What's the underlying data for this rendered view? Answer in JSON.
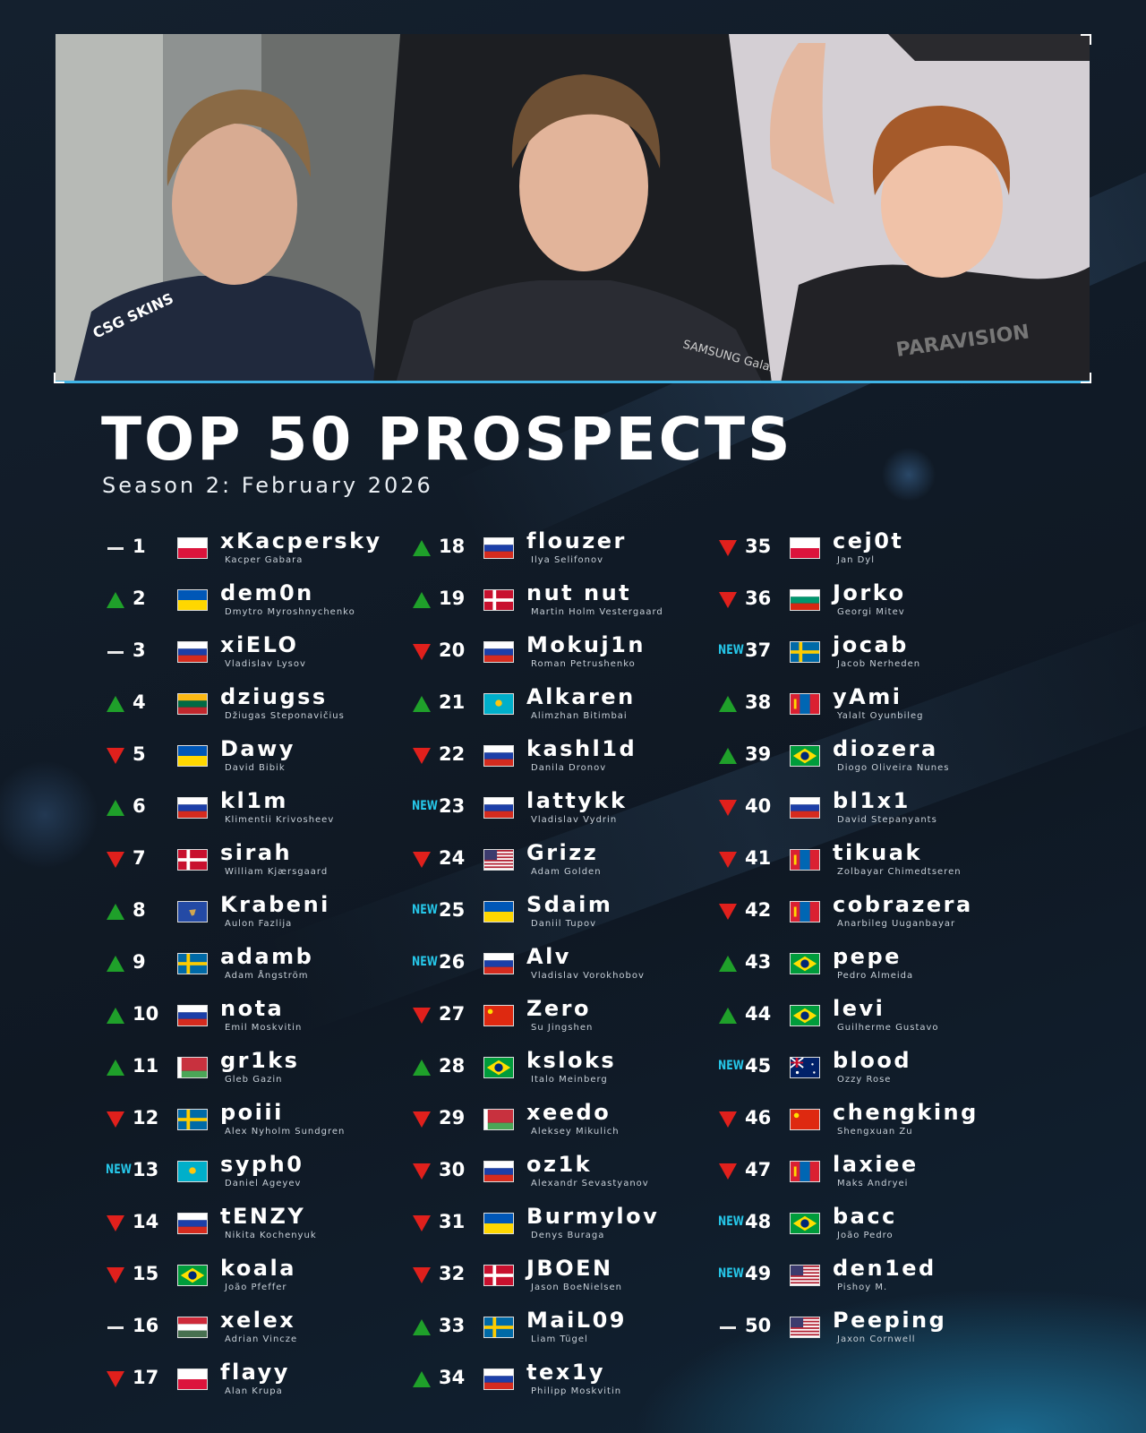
{
  "title": "TOP 50 PROSPECTS",
  "subtitle": "Season 2: February 2026",
  "colors": {
    "up": "#1fa02a",
    "down": "#e0201c",
    "new": "#26c6e8",
    "accent": "#3fb4e6"
  },
  "new_label": "NEW",
  "photos": [
    {
      "jersey_text": "CSG SKINS"
    },
    {
      "jersey_text": "SAMSUNG Galaxy"
    },
    {
      "jersey_text": "PARAVISION"
    }
  ],
  "players": [
    {
      "rank": "1",
      "trend": "same",
      "flag": "pl",
      "nick": "xKacpersky",
      "name": "Kacper Gabara"
    },
    {
      "rank": "2",
      "trend": "up",
      "flag": "ua",
      "nick": "dem0n",
      "name": "Dmytro Myroshnychenko"
    },
    {
      "rank": "3",
      "trend": "same",
      "flag": "ru",
      "nick": "xiELO",
      "name": "Vladislav Lysov"
    },
    {
      "rank": "4",
      "trend": "up",
      "flag": "lt",
      "nick": "dziugss",
      "name": "Džiugas Steponavičius"
    },
    {
      "rank": "5",
      "trend": "down",
      "flag": "ua",
      "nick": "Dawy",
      "name": "David Bibik"
    },
    {
      "rank": "6",
      "trend": "up",
      "flag": "ru",
      "nick": "kl1m",
      "name": "Klimentii Krivosheev"
    },
    {
      "rank": "7",
      "trend": "down",
      "flag": "dk",
      "nick": "sirah",
      "name": "William Kjærsgaard"
    },
    {
      "rank": "8",
      "trend": "up",
      "flag": "xk",
      "nick": "Krabeni",
      "name": "Aulon Fazlija"
    },
    {
      "rank": "9",
      "trend": "up",
      "flag": "se",
      "nick": "adamb",
      "name": "Adam Ångström"
    },
    {
      "rank": "10",
      "trend": "up",
      "flag": "ru",
      "nick": "nota",
      "name": "Emil Moskvitin"
    },
    {
      "rank": "11",
      "trend": "up",
      "flag": "by",
      "nick": "gr1ks",
      "name": "Gleb Gazin"
    },
    {
      "rank": "12",
      "trend": "down",
      "flag": "se",
      "nick": "poiii",
      "name": "Alex Nyholm Sundgren"
    },
    {
      "rank": "13",
      "trend": "new",
      "flag": "kz",
      "nick": "syph0",
      "name": "Daniel Ageyev"
    },
    {
      "rank": "14",
      "trend": "down",
      "flag": "ru",
      "nick": "tENZY",
      "name": "Nikita Kochenyuk"
    },
    {
      "rank": "15",
      "trend": "down",
      "flag": "br",
      "nick": "koala",
      "name": "João Pfeffer"
    },
    {
      "rank": "16",
      "trend": "same",
      "flag": "hu",
      "nick": "xelex",
      "name": "Adrian Vincze"
    },
    {
      "rank": "17",
      "trend": "down",
      "flag": "pl",
      "nick": "flayy",
      "name": "Alan Krupa"
    },
    {
      "rank": "18",
      "trend": "up",
      "flag": "ru",
      "nick": "flouzer",
      "name": "Ilya Selifonov"
    },
    {
      "rank": "19",
      "trend": "up",
      "flag": "dk",
      "nick": "nut nut",
      "name": "Martin Holm Vestergaard"
    },
    {
      "rank": "20",
      "trend": "down",
      "flag": "ru",
      "nick": "Mokuj1n",
      "name": "Roman Petrushenko"
    },
    {
      "rank": "21",
      "trend": "up",
      "flag": "kz",
      "nick": "Alkaren",
      "name": "Alimzhan Bitimbai"
    },
    {
      "rank": "22",
      "trend": "down",
      "flag": "ru",
      "nick": "kashl1d",
      "name": "Danila Dronov"
    },
    {
      "rank": "23",
      "trend": "new",
      "flag": "ru",
      "nick": "lattykk",
      "name": "Vladislav Vydrin"
    },
    {
      "rank": "24",
      "trend": "down",
      "flag": "us",
      "nick": "Grizz",
      "name": "Adam Golden"
    },
    {
      "rank": "25",
      "trend": "new",
      "flag": "ua",
      "nick": "Sdaim",
      "name": "Daniil Tupov"
    },
    {
      "rank": "26",
      "trend": "new",
      "flag": "ru",
      "nick": "Alv",
      "name": "Vladislav Vorokhobov"
    },
    {
      "rank": "27",
      "trend": "down",
      "flag": "cn",
      "nick": "Zero",
      "name": "Su Jingshen"
    },
    {
      "rank": "28",
      "trend": "up",
      "flag": "br",
      "nick": "ksloks",
      "name": "Italo Meinberg"
    },
    {
      "rank": "29",
      "trend": "down",
      "flag": "by",
      "nick": "xeedo",
      "name": "Aleksey Mikulich"
    },
    {
      "rank": "30",
      "trend": "down",
      "flag": "ru",
      "nick": "oz1k",
      "name": "Alexandr Sevastyanov"
    },
    {
      "rank": "31",
      "trend": "down",
      "flag": "ua",
      "nick": "Burmylov",
      "name": "Denys Buraga"
    },
    {
      "rank": "32",
      "trend": "down",
      "flag": "dk",
      "nick": "JBOEN",
      "name": "Jason BoeNielsen"
    },
    {
      "rank": "33",
      "trend": "up",
      "flag": "se",
      "nick": "MaiL09",
      "name": "Liam Tügel"
    },
    {
      "rank": "34",
      "trend": "up",
      "flag": "ru",
      "nick": "tex1y",
      "name": "Philipp Moskvitin"
    },
    {
      "rank": "35",
      "trend": "down",
      "flag": "pl",
      "nick": "cej0t",
      "name": "Jan Dyl"
    },
    {
      "rank": "36",
      "trend": "down",
      "flag": "bg",
      "nick": "Jorko",
      "name": "Georgi Mitev"
    },
    {
      "rank": "37",
      "trend": "new",
      "flag": "se",
      "nick": "jocab",
      "name": "Jacob Nerheden"
    },
    {
      "rank": "38",
      "trend": "up",
      "flag": "mn",
      "nick": "yAmi",
      "name": "Yalalt Oyunbileg"
    },
    {
      "rank": "39",
      "trend": "up",
      "flag": "br",
      "nick": "diozera",
      "name": "Diogo Oliveira Nunes"
    },
    {
      "rank": "40",
      "trend": "down",
      "flag": "ru",
      "nick": "bl1x1",
      "name": "David Stepanyants"
    },
    {
      "rank": "41",
      "trend": "down",
      "flag": "mn",
      "nick": "tikuak",
      "name": "Zolbayar Chimedtseren"
    },
    {
      "rank": "42",
      "trend": "down",
      "flag": "mn",
      "nick": "cobrazera",
      "name": "Anarbileg Uuganbayar"
    },
    {
      "rank": "43",
      "trend": "up",
      "flag": "br",
      "nick": "pepe",
      "name": "Pedro Almeida"
    },
    {
      "rank": "44",
      "trend": "up",
      "flag": "br",
      "nick": "levi",
      "name": "Guilherme Gustavo"
    },
    {
      "rank": "45",
      "trend": "new",
      "flag": "au",
      "nick": "blood",
      "name": "Ozzy Rose"
    },
    {
      "rank": "46",
      "trend": "down",
      "flag": "cn",
      "nick": "chengking",
      "name": "Shengxuan Zu"
    },
    {
      "rank": "47",
      "trend": "down",
      "flag": "mn",
      "nick": "laxiee",
      "name": "Maks Andryei"
    },
    {
      "rank": "48",
      "trend": "new",
      "flag": "br",
      "nick": "bacc",
      "name": "João Pedro"
    },
    {
      "rank": "49",
      "trend": "new",
      "flag": "us",
      "nick": "den1ed",
      "name": "Pishoy M."
    },
    {
      "rank": "50",
      "trend": "same",
      "flag": "us",
      "nick": "Peeping",
      "name": "Jaxon Cornwell"
    }
  ]
}
